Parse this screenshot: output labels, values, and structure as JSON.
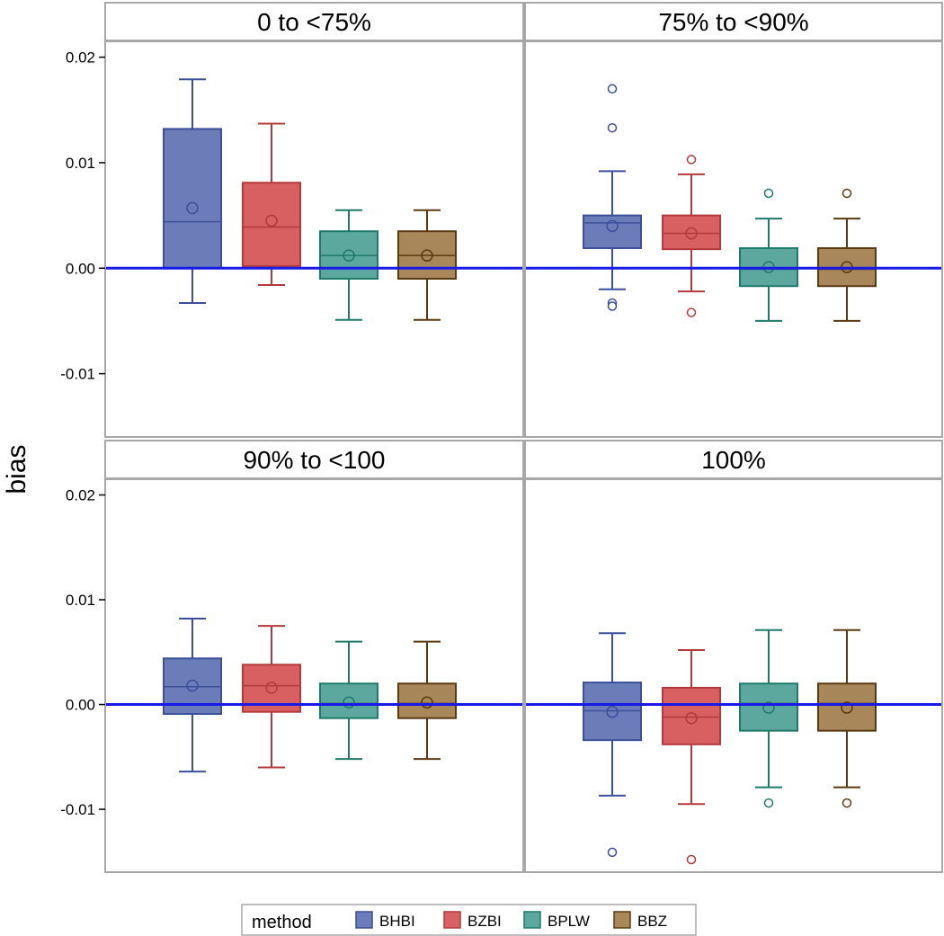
{
  "chart_data": {
    "type": "boxplot",
    "ylabel": "bias",
    "ylim": [
      -0.016,
      0.0215
    ],
    "yticks": [
      -0.01,
      0.0,
      0.01,
      0.02
    ],
    "ytick_labels": [
      "-0.01",
      "0.00",
      "0.01",
      "0.02"
    ],
    "reference_line": 0.0,
    "legend": {
      "title": "method",
      "placement": "bottom-center",
      "entries": [
        "BHBI",
        "BZBI",
        "BPLW",
        "BBZ"
      ]
    },
    "colors": {
      "BHBI": {
        "fill": "#6B7DB8",
        "edge": "#3B4F9B"
      },
      "BZBI": {
        "fill": "#D96060",
        "edge": "#B33A3A"
      },
      "BPLW": {
        "fill": "#5DA89E",
        "edge": "#1F7A6B"
      },
      "BBZ": {
        "fill": "#A8875A",
        "edge": "#5A3A12"
      },
      "reference": "#1A1AE6",
      "frame": "#A8A8A8"
    },
    "panels": [
      {
        "title": "0 to <75%",
        "boxes": [
          {
            "method": "BHBI",
            "whisker_low": -0.0033,
            "q1": 0.0,
            "median": 0.0044,
            "q3": 0.0132,
            "whisker_high": 0.0179,
            "mean": 0.0057,
            "outliers": []
          },
          {
            "method": "BZBI",
            "whisker_low": -0.0016,
            "q1": 0.0002,
            "median": 0.0039,
            "q3": 0.0081,
            "whisker_high": 0.0137,
            "mean": 0.0045,
            "outliers": []
          },
          {
            "method": "BPLW",
            "whisker_low": -0.0049,
            "q1": -0.001,
            "median": 0.0012,
            "q3": 0.0035,
            "whisker_high": 0.0055,
            "mean": 0.0012,
            "outliers": []
          },
          {
            "method": "BBZ",
            "whisker_low": -0.0049,
            "q1": -0.001,
            "median": 0.0012,
            "q3": 0.0035,
            "whisker_high": 0.0055,
            "mean": 0.0012,
            "outliers": []
          }
        ]
      },
      {
        "title": "75% to <90%",
        "boxes": [
          {
            "method": "BHBI",
            "whisker_low": -0.002,
            "q1": 0.0019,
            "median": 0.0043,
            "q3": 0.005,
            "whisker_high": 0.0092,
            "mean": 0.004,
            "outliers": [
              0.017,
              0.0133,
              -0.0033,
              -0.0036
            ]
          },
          {
            "method": "BZBI",
            "whisker_low": -0.0022,
            "q1": 0.0018,
            "median": 0.0033,
            "q3": 0.005,
            "whisker_high": 0.0089,
            "mean": 0.0033,
            "outliers": [
              0.0103,
              -0.0042
            ]
          },
          {
            "method": "BPLW",
            "whisker_low": -0.005,
            "q1": -0.0017,
            "median": -0.0001,
            "q3": 0.0019,
            "whisker_high": 0.0047,
            "mean": 0.0001,
            "outliers": [
              0.0071
            ]
          },
          {
            "method": "BBZ",
            "whisker_low": -0.005,
            "q1": -0.0017,
            "median": -0.0001,
            "q3": 0.0019,
            "whisker_high": 0.0047,
            "mean": 0.0001,
            "outliers": [
              0.0071
            ]
          }
        ]
      },
      {
        "title": "90% to <100",
        "boxes": [
          {
            "method": "BHBI",
            "whisker_low": -0.0064,
            "q1": -0.0009,
            "median": 0.0017,
            "q3": 0.0044,
            "whisker_high": 0.0082,
            "mean": 0.0018,
            "outliers": []
          },
          {
            "method": "BZBI",
            "whisker_low": -0.006,
            "q1": -0.0007,
            "median": 0.0018,
            "q3": 0.0038,
            "whisker_high": 0.0075,
            "mean": 0.0016,
            "outliers": []
          },
          {
            "method": "BPLW",
            "whisker_low": -0.0052,
            "q1": -0.0013,
            "median": 0.0001,
            "q3": 0.002,
            "whisker_high": 0.006,
            "mean": 0.0002,
            "outliers": []
          },
          {
            "method": "BBZ",
            "whisker_low": -0.0052,
            "q1": -0.0013,
            "median": 0.0001,
            "q3": 0.002,
            "whisker_high": 0.006,
            "mean": 0.0002,
            "outliers": []
          }
        ]
      },
      {
        "title": "100%",
        "boxes": [
          {
            "method": "BHBI",
            "whisker_low": -0.0087,
            "q1": -0.0034,
            "median": -0.0006,
            "q3": 0.0021,
            "whisker_high": 0.0068,
            "mean": -0.0007,
            "outliers": [
              -0.0141
            ]
          },
          {
            "method": "BZBI",
            "whisker_low": -0.0095,
            "q1": -0.0038,
            "median": -0.0012,
            "q3": 0.0016,
            "whisker_high": 0.0052,
            "mean": -0.0013,
            "outliers": [
              -0.0148
            ]
          },
          {
            "method": "BPLW",
            "whisker_low": -0.0079,
            "q1": -0.0025,
            "median": 0.0001,
            "q3": 0.002,
            "whisker_high": 0.0071,
            "mean": -0.0003,
            "outliers": [
              -0.0094
            ]
          },
          {
            "method": "BBZ",
            "whisker_low": -0.0079,
            "q1": -0.0025,
            "median": 0.0001,
            "q3": 0.002,
            "whisker_high": 0.0071,
            "mean": -0.0003,
            "outliers": [
              -0.0094
            ]
          }
        ]
      }
    ]
  }
}
